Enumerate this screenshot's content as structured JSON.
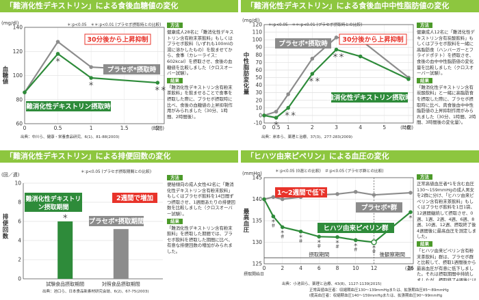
{
  "panels": [
    {
      "title": "「難消化性デキストリン」による食後血糖値の変化",
      "unit": "(mg/dl)",
      "ylabel": "血糖値",
      "note": "＊:p<0.05　＊＊:p<0.01 (プラセボ摂取時との比較)",
      "side_h": "方法",
      "side_method": "健康成人28名に「難消化性デキストリン含有粉末茶飲料」もしくはプラセボ飲料（いずれも100mlの湯に溶かしたもの）を飲ませてから、食事（カレーライス：602kcal）を摂取させ、食後の血糖値を比較しました（クロスオーバー試験）。",
      "side_r": "結果",
      "side_result": "「難消化性デキストリン含有粉末茶飲料」を飲ませることで食事を摂取した際に、プラセボ摂取時に比べ、食後の血糖値の上昇抑制作用がみられました（30分、1時間、2時間後）。",
      "source": "出典：中川ら、健康・栄養食品研究、6(1)、81-88(2003)",
      "callouts": [
        "30分後から上昇抑制",
        "プラセボ*摂取時",
        "難消化性デキストリン摂取時"
      ]
    },
    {
      "title": "「難消化性デキストリン」による食後血中中性脂肪値の変化",
      "unit": "(mg/dl)",
      "ylabel": "中性脂肪変化量",
      "note": "＊:p<0.05　＊＊:p<0.01 (プラセボ摂取時との比較)",
      "side_h": "方法",
      "side_method": "健康成人12名に「難消化性デキストリン含有炭酸飲料」もしくはプラセボ飲料を一緒に高脂肪食（ハンバーガーとフライドポテト）を摂取させ、食後の血中中性脂肪値の変化量を比較しました（クロスオーバー試験）。",
      "side_r": "結果",
      "side_result": "「難消化性デキストリン含有炭酸飲料」と一緒に高脂肪食を摂取した際に、プラセボ摂取時に比べ、肉食後血中中性脂肪値の上昇抑制作用がみられました（30分、1時間、2時間、3時間後の変化量）。",
      "source": "出典：岸本ら、薬理と治療、37(3)、277-283(2009)",
      "callouts": [
        "30分後から上昇抑制",
        "プラセボ*摂取時",
        "難消化性デキストリン摂取時"
      ]
    },
    {
      "title": "「難消化性デキストリン」による排便回数の変化",
      "unit": "(回／週)",
      "ylabel": "排便回数",
      "note": "＊:p<0.05 (プラセボ摂取期間との比較)",
      "side_h": "方法",
      "side_method": "便秘傾向の成人女性42名に「難消化性デキストリン含有粉末飲料」もしくはプラセボ飲料を14日間ずつ摂取させ、1週間あたりの排便回数を比較しました（クロスオーバー試験）。",
      "side_r": "結果",
      "side_result": "「難消化性デキストリン含有粉末飲料」を摂取した期間では、プラセボ飲料を摂取した期間に比べ、有意な排便回数の増加がみられました。",
      "source": "出典：池口ら、日本食品新素材研究会誌、6(2)、67-75(2003)",
      "callouts": [
        "難消化性デキストリン摂取期間",
        "2週間で増加",
        "プラセボ*摂取期間"
      ]
    },
    {
      "title": "「ヒハツ由来ピペリン」による血圧の変化",
      "unit": "(mmHg)",
      "ylabel": "最高血圧",
      "note": "＊:p<0.05 (0週との比較)　＃:p<0.05 (プラセボ群との比較)",
      "side_h": "方法",
      "side_method": "正常高値血圧者*1を含む血圧130〜159mmHgの成人男女を2群に分け、「ヒハツ由来ピペリン含有粉末茶飲料」もしくはプラセボ飲料を1日1袋、12週間継続して摂取させ、0週、1週、2週、4週、6週、8週、10週、12週、摂取終了後4週間後に最高血圧を測定しました。",
      "side_r": "結果",
      "side_result": "「ヒハツ由来ピペリン含有粉末茶飲料」群は、プラセボ群と比較して、摂取1週間後から最高血圧が有意に低下しました。それは摂取期間中持続しましたが、摂取終了4週後には元の血圧に戻りました。",
      "source": "出典：小池田ら、薬理と治療、43(8)、1127-1139(2015)",
      "callouts": [
        "1〜2週間で低下",
        "プラセボ*群",
        "ヒハツ由来ピペリン群"
      ],
      "period_in": "摂取期間",
      "period_after": "後観察期間",
      "start_label": "摂取開始日",
      "foot1": "正常高値血圧者：収縮期血圧130〜139mmHgまたは、拡張期血圧85〜89mmHg",
      "foot2": "Ⅰ度高血圧者：収縮期血圧140〜159mmHgまたは、拡張期血圧90〜99mmHg"
    }
  ],
  "chart_data": [
    {
      "type": "line",
      "title": "「難消化性デキストリン」による食後血糖値の変化",
      "xlabel": "(時間)",
      "ylabel": "血糖値",
      "xlim": [
        0,
        2.1
      ],
      "ylim": [
        60,
        140
      ],
      "xticks": [
        0,
        0.5,
        1,
        1.5,
        2
      ],
      "yticks": [
        60,
        80,
        100,
        120,
        140
      ],
      "grid": true,
      "series": [
        {
          "name": "プラセボ*摂取時",
          "color": "#8c8c8c",
          "x": [
            0,
            0.5,
            1,
            2
          ],
          "y": [
            86,
            128,
            107,
            104
          ]
        },
        {
          "name": "難消化性デキストリン摂取時",
          "color": "#2e8b3a",
          "x": [
            0,
            0.5,
            1,
            2
          ],
          "y": [
            86,
            118,
            98,
            94
          ]
        }
      ],
      "annotations": [
        {
          "x": 0.5,
          "text": "＊"
        },
        {
          "x": 1,
          "text": "＊"
        },
        {
          "x": 2,
          "text": "＊＊"
        }
      ]
    },
    {
      "type": "line",
      "title": "「難消化性デキストリン」による食後血中中性脂肪値の変化",
      "xlabel": "(時間)",
      "ylabel": "中性脂肪変化量",
      "xlim": [
        0,
        6.2
      ],
      "ylim": [
        -10,
        120
      ],
      "xticks": [
        0,
        0.5,
        1,
        2,
        3,
        4,
        5,
        6
      ],
      "yticks": [
        -10,
        0,
        10,
        20,
        30,
        40,
        50,
        60,
        70,
        80,
        90,
        100,
        110,
        120
      ],
      "grid": true,
      "series": [
        {
          "name": "プラセボ*摂取時",
          "color": "#8c8c8c",
          "x": [
            0,
            0.5,
            1,
            2,
            3,
            4,
            6
          ],
          "y": [
            0,
            5,
            28,
            75,
            103,
            100,
            50
          ]
        },
        {
          "name": "難消化性デキストリン摂取時",
          "color": "#2e8b3a",
          "x": [
            0,
            0.5,
            1,
            2,
            3,
            4,
            6
          ],
          "y": [
            0,
            -3,
            10,
            55,
            87,
            78,
            48
          ]
        }
      ],
      "annotations": [
        {
          "x": 0.5,
          "text": "＊"
        },
        {
          "x": 1,
          "text": "＊＊"
        },
        {
          "x": 2,
          "text": "＊＊"
        },
        {
          "x": 3,
          "text": "＊＊"
        }
      ]
    },
    {
      "type": "bar",
      "title": "「難消化性デキストリン」による排便回数の変化",
      "ylabel": "排便回数",
      "ylim": [
        0,
        10
      ],
      "yticks": [
        0,
        2,
        4,
        6,
        8,
        10
      ],
      "categories": [
        "試験食品摂取期間",
        "対照食品摂取期間"
      ],
      "values": [
        6.0,
        5.2
      ],
      "colors": [
        "#2e8b3a",
        "#8c8c8c"
      ],
      "annotations": [
        {
          "index": 0,
          "text": "＊"
        }
      ]
    },
    {
      "type": "line",
      "title": "「ヒハツ由来ピペリン」による血圧の変化",
      "xlabel": "(週)",
      "ylabel": "最高血圧",
      "xlim": [
        0,
        16.3
      ],
      "ylim": [
        125,
        145
      ],
      "xticks": [
        0,
        2,
        4,
        6,
        8,
        10,
        12,
        16
      ],
      "yticks": [
        125,
        130,
        135,
        140,
        145
      ],
      "grid": true,
      "series": [
        {
          "name": "プラセボ*群",
          "color": "#8c8c8c",
          "x": [
            0,
            1,
            2,
            4,
            6,
            8,
            10,
            12,
            16
          ],
          "y": [
            140,
            140.5,
            140,
            140.5,
            141,
            141.2,
            141.7,
            141,
            141.5
          ]
        },
        {
          "name": "ヒハツ由来ピペリン群",
          "color": "#2e8b3a",
          "x": [
            0,
            1,
            2,
            4,
            6,
            8,
            10,
            12,
            16
          ],
          "y": [
            140,
            136,
            133.5,
            132.5,
            131.3,
            131.2,
            130.5,
            130,
            137
          ]
        }
      ],
      "annotations": [
        {
          "x": 1,
          "text": "＊＃"
        },
        {
          "x": 2,
          "text": "＊＃"
        },
        {
          "x": 4,
          "text": "＊＃"
        },
        {
          "x": 6,
          "text": "＊＃"
        },
        {
          "x": 8,
          "text": "＊＃"
        },
        {
          "x": 10,
          "text": "＊＃"
        },
        {
          "x": 12,
          "text": "＊＃"
        },
        {
          "x": 16,
          "text": "＊"
        }
      ]
    }
  ]
}
